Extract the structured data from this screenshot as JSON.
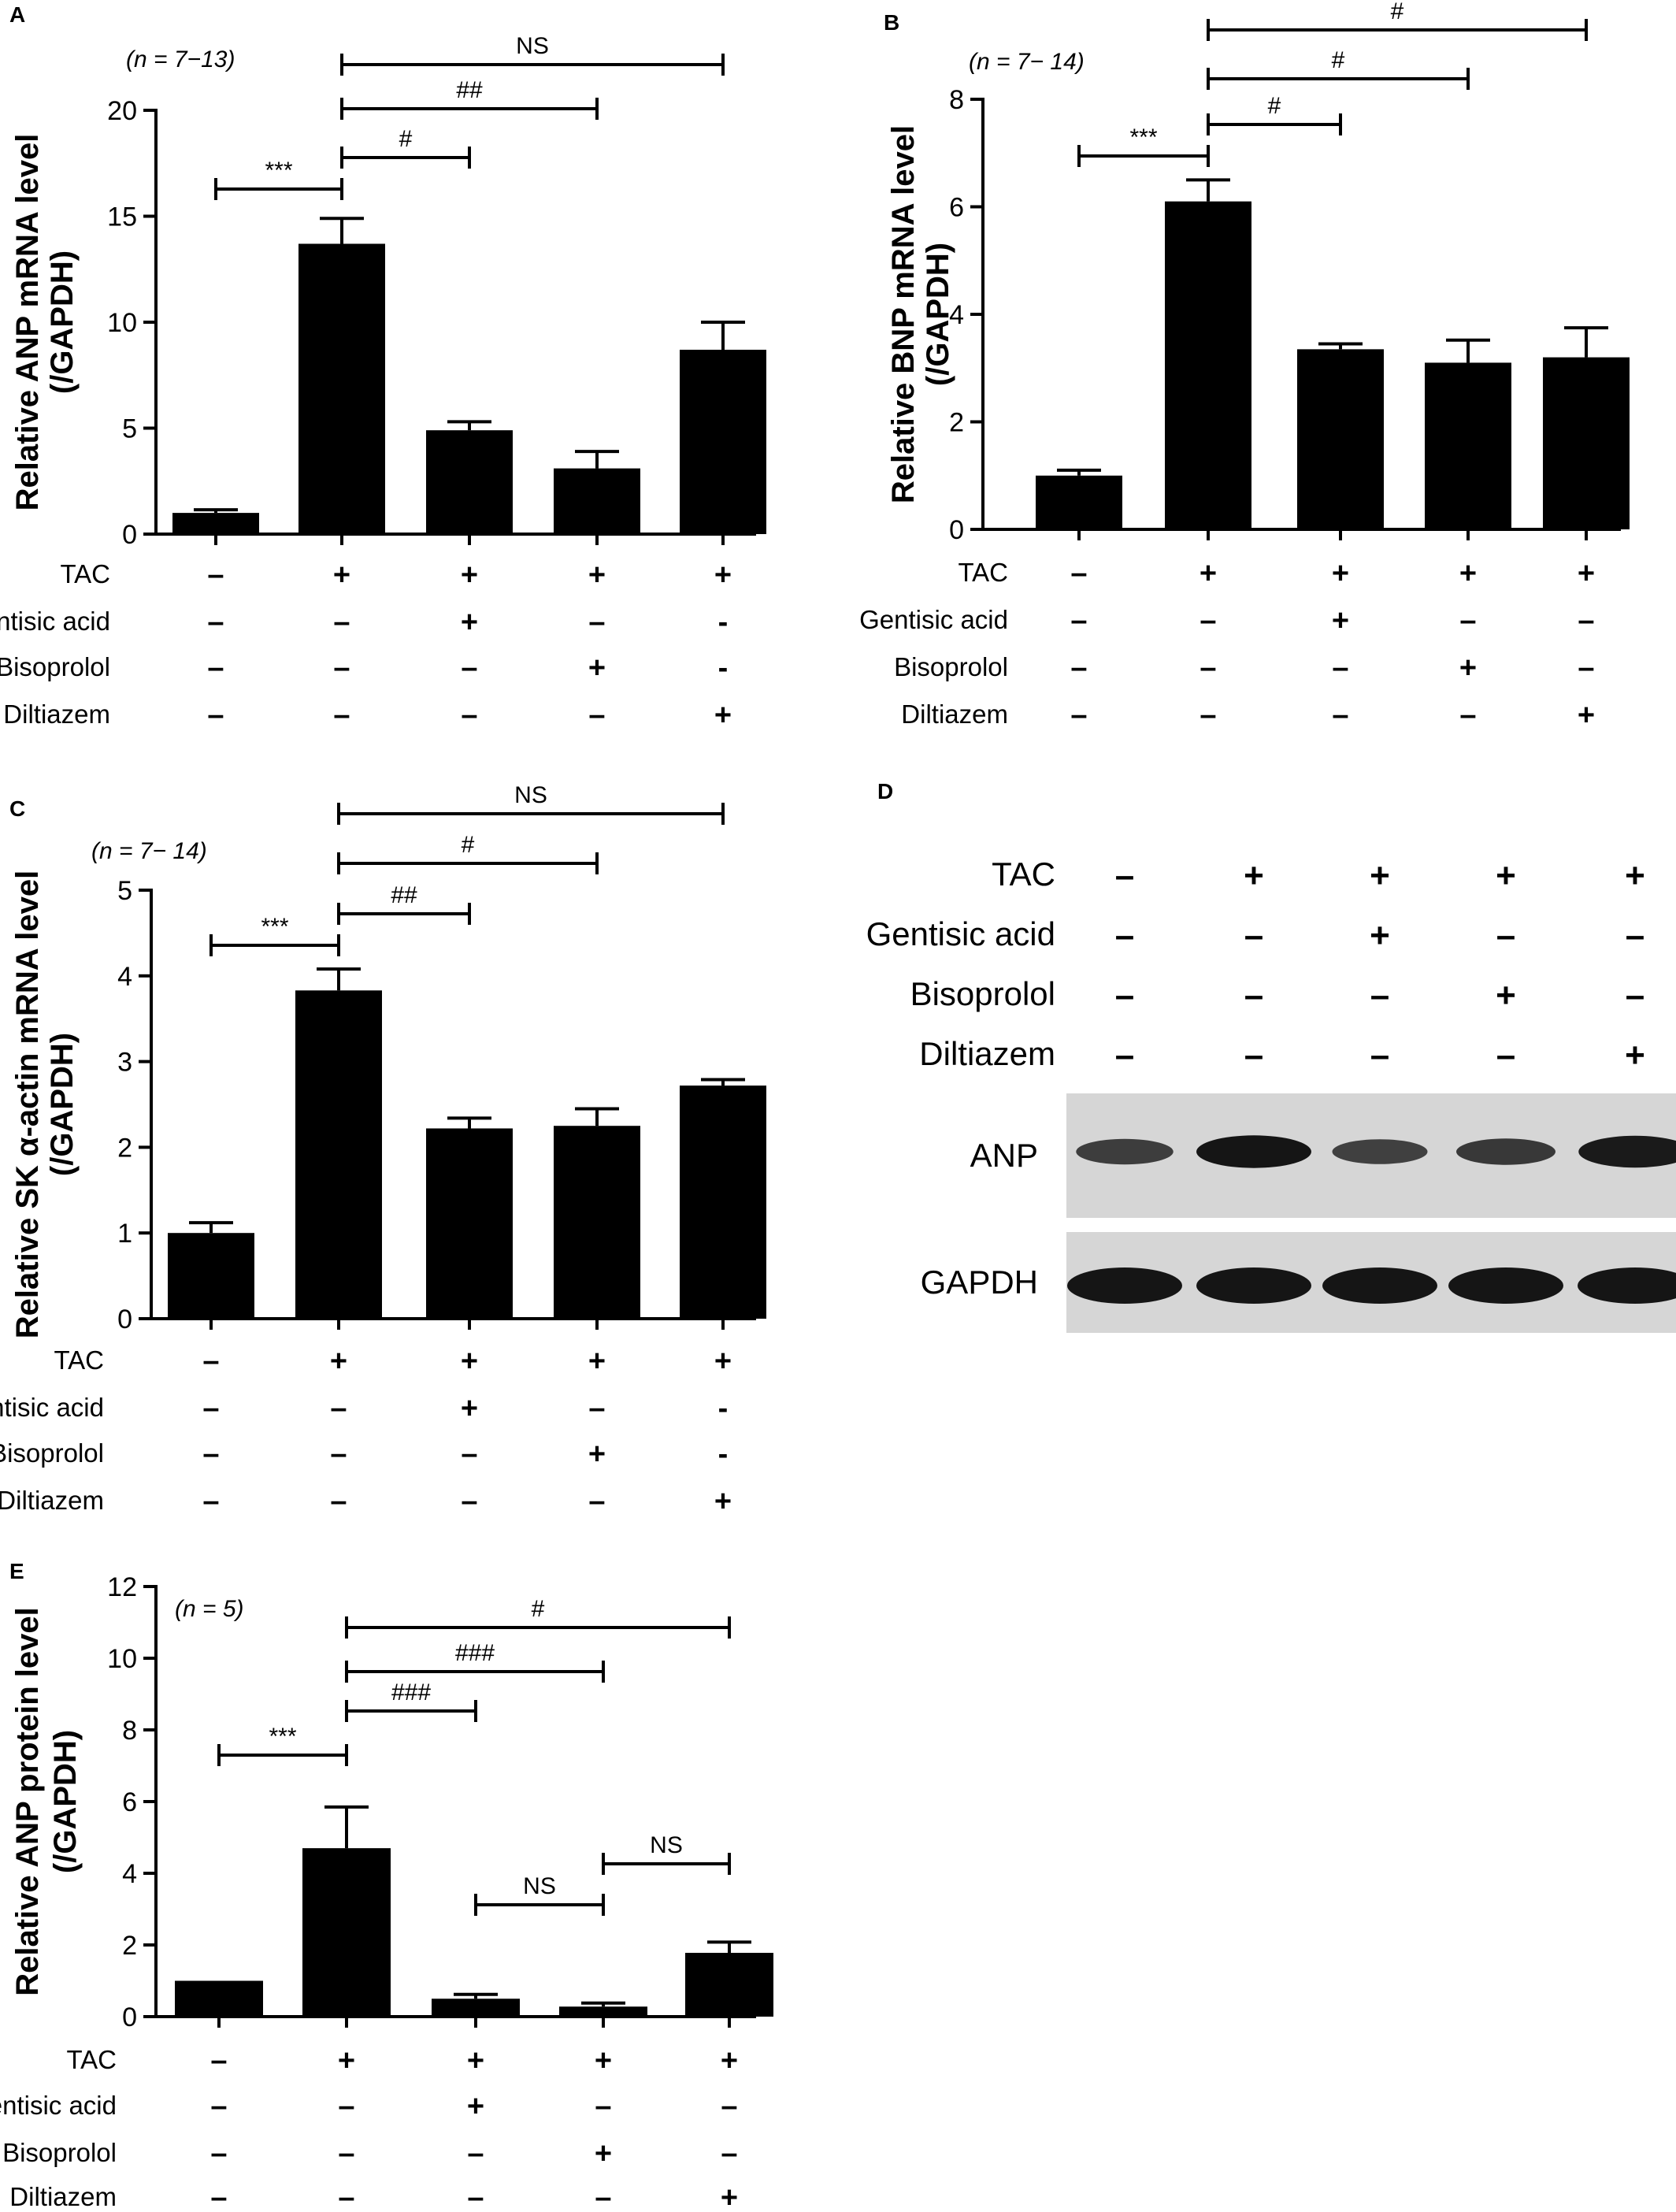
{
  "treatment_rows": [
    "TAC",
    "Gentisic acid",
    "Bisoprolol",
    "Diltiazem"
  ],
  "colors": {
    "bar": "#000000",
    "axis": "#000000",
    "blot_bg": "#d6d6d6",
    "band": "#151515"
  },
  "chart_data": [
    {
      "id": "A",
      "type": "bar",
      "panel": "A",
      "n": "(n = 7−13)",
      "ylabel_line1": "Relative ANP mRNA level",
      "ylabel_line2": "(/GAPDH)",
      "ylim": [
        0,
        20
      ],
      "yticks": [
        0,
        5,
        10,
        15,
        20
      ],
      "values": [
        1.0,
        13.7,
        4.9,
        3.1,
        8.7
      ],
      "errors": [
        0.15,
        1.2,
        0.4,
        0.8,
        1.3
      ],
      "sign_matrix": [
        [
          "–",
          "+",
          "+",
          "+",
          "+"
        ],
        [
          "–",
          "–",
          "+",
          "–",
          "-"
        ],
        [
          "–",
          "–",
          "–",
          "+",
          "-"
        ],
        [
          "–",
          "–",
          "–",
          "–",
          "+"
        ]
      ],
      "comparisons": [
        {
          "from": 0,
          "to": 1,
          "label": "***"
        },
        {
          "from": 1,
          "to": 2,
          "label": "#"
        },
        {
          "from": 1,
          "to": 3,
          "label": "##"
        },
        {
          "from": 1,
          "to": 4,
          "label": "NS"
        }
      ]
    },
    {
      "id": "B",
      "type": "bar",
      "panel": "B",
      "n": "(n = 7− 14)",
      "ylabel_line1": "Relative BNP mRNA level",
      "ylabel_line2": "(/GAPDH)",
      "ylim": [
        0,
        8
      ],
      "yticks": [
        0,
        2,
        4,
        6,
        8
      ],
      "values": [
        1.0,
        6.1,
        3.35,
        3.1,
        3.2
      ],
      "errors": [
        0.1,
        0.4,
        0.1,
        0.42,
        0.55
      ],
      "sign_matrix": [
        [
          "–",
          "+",
          "+",
          "+",
          "+"
        ],
        [
          "–",
          "–",
          "+",
          "–",
          "–"
        ],
        [
          "–",
          "–",
          "–",
          "+",
          "–"
        ],
        [
          "–",
          "–",
          "–",
          "–",
          "+"
        ]
      ],
      "comparisons": [
        {
          "from": 0,
          "to": 1,
          "label": "***"
        },
        {
          "from": 1,
          "to": 2,
          "label": "#"
        },
        {
          "from": 1,
          "to": 3,
          "label": "#"
        },
        {
          "from": 1,
          "to": 4,
          "label": "#"
        }
      ]
    },
    {
      "id": "C",
      "type": "bar",
      "panel": "C",
      "n": "(n = 7− 14)",
      "ylabel_line1": "Relative SK α-actin mRNA level",
      "ylabel_line2": "(/GAPDH)",
      "ylim": [
        0,
        5
      ],
      "yticks": [
        0,
        1,
        2,
        3,
        4,
        5
      ],
      "values": [
        1.0,
        3.83,
        2.22,
        2.25,
        2.72
      ],
      "errors": [
        0.12,
        0.25,
        0.12,
        0.2,
        0.07
      ],
      "sign_matrix": [
        [
          "–",
          "+",
          "+",
          "+",
          "+"
        ],
        [
          "–",
          "–",
          "+",
          "–",
          "-"
        ],
        [
          "–",
          "–",
          "–",
          "+",
          "-"
        ],
        [
          "–",
          "–",
          "–",
          "–",
          "+"
        ]
      ],
      "comparisons": [
        {
          "from": 0,
          "to": 1,
          "label": "***"
        },
        {
          "from": 1,
          "to": 2,
          "label": "##"
        },
        {
          "from": 1,
          "to": 3,
          "label": "#"
        },
        {
          "from": 1,
          "to": 4,
          "label": "NS"
        }
      ]
    },
    {
      "id": "E",
      "type": "bar",
      "panel": "E",
      "n": "(n = 5)",
      "ylabel_line1": "Relative ANP protein level",
      "ylabel_line2": "(/GAPDH)",
      "ylim": [
        0,
        12
      ],
      "yticks": [
        0,
        2,
        4,
        6,
        8,
        10,
        12
      ],
      "values": [
        1.0,
        4.7,
        0.5,
        0.28,
        1.78
      ],
      "errors": [
        0,
        1.15,
        0.12,
        0.1,
        0.3
      ],
      "sign_matrix": [
        [
          "–",
          "+",
          "+",
          "+",
          "+"
        ],
        [
          "–",
          "–",
          "+",
          "–",
          "–"
        ],
        [
          "–",
          "–",
          "–",
          "+",
          "–"
        ],
        [
          "–",
          "–",
          "–",
          "–",
          "+"
        ]
      ],
      "comparisons": [
        {
          "from": 0,
          "to": 1,
          "label": "***"
        },
        {
          "from": 1,
          "to": 2,
          "label": "###"
        },
        {
          "from": 1,
          "to": 3,
          "label": "###"
        },
        {
          "from": 1,
          "to": 4,
          "label": "#"
        },
        {
          "from": 2,
          "to": 3,
          "label": "NS"
        },
        {
          "from": 3,
          "to": 4,
          "label": "NS"
        }
      ]
    }
  ],
  "western_blot": {
    "panel": "D",
    "sign_matrix": [
      [
        "–",
        "+",
        "+",
        "+",
        "+"
      ],
      [
        "–",
        "–",
        "+",
        "–",
        "–"
      ],
      [
        "–",
        "–",
        "–",
        "+",
        "–"
      ],
      [
        "–",
        "–",
        "–",
        "–",
        "+"
      ]
    ],
    "bands": [
      "ANP",
      "GAPDH"
    ],
    "anp_intensity": [
      0.55,
      1.0,
      0.5,
      0.6,
      0.95
    ],
    "gapdh_intensity": [
      1.0,
      1.0,
      1.0,
      1.0,
      1.0
    ]
  }
}
